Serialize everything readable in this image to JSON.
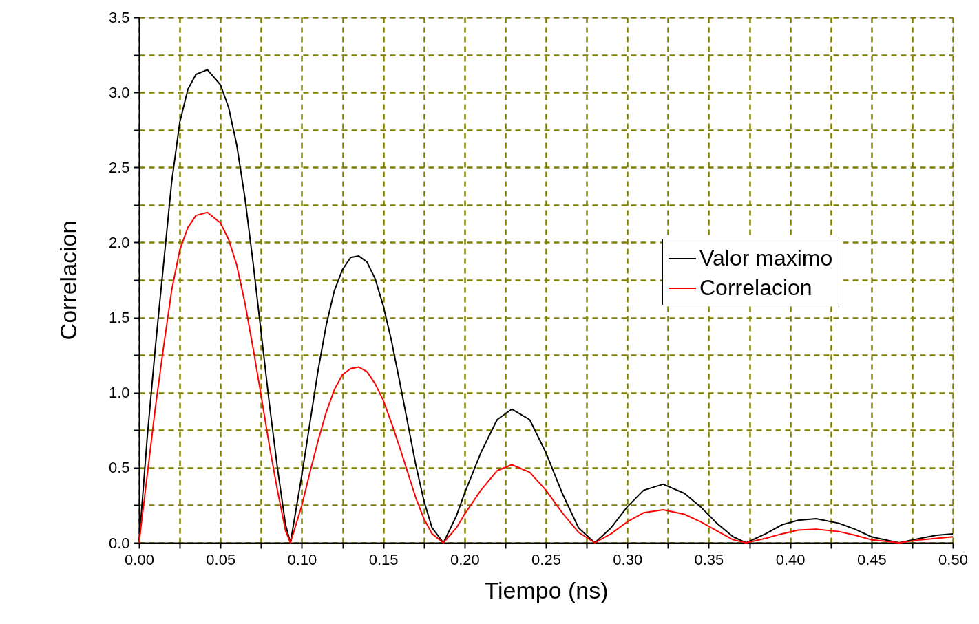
{
  "chart_data": {
    "type": "line",
    "xlabel": "Tiempo (ns)",
    "ylabel": "Correlacion",
    "x": [
      0,
      0.005,
      0.01,
      0.0125,
      0.015,
      0.02,
      0.025,
      0.03,
      0.035,
      0.042,
      0.05,
      0.055,
      0.06,
      0.065,
      0.07,
      0.075,
      0.08,
      0.085,
      0.09,
      0.093,
      0.1,
      0.105,
      0.11,
      0.115,
      0.12,
      0.125,
      0.13,
      0.135,
      0.14,
      0.145,
      0.15,
      0.155,
      0.16,
      0.165,
      0.17,
      0.175,
      0.18,
      0.187,
      0.195,
      0.2,
      0.21,
      0.22,
      0.229,
      0.24,
      0.25,
      0.26,
      0.27,
      0.28,
      0.29,
      0.3,
      0.31,
      0.322,
      0.335,
      0.345,
      0.355,
      0.365,
      0.373,
      0.385,
      0.395,
      0.405,
      0.416,
      0.43,
      0.44,
      0.45,
      0.467,
      0.48,
      0.49,
      0.5
    ],
    "series": [
      {
        "name": "Valor maximo",
        "color": "#000000",
        "values": [
          0,
          0.7,
          1.3,
          1.58,
          1.85,
          2.4,
          2.8,
          3.02,
          3.12,
          3.15,
          3.05,
          2.9,
          2.65,
          2.3,
          1.87,
          1.4,
          0.93,
          0.5,
          0.12,
          0,
          0.45,
          0.8,
          1.15,
          1.45,
          1.68,
          1.82,
          1.9,
          1.91,
          1.87,
          1.76,
          1.58,
          1.35,
          1.08,
          0.8,
          0.52,
          0.28,
          0.1,
          0,
          0.18,
          0.33,
          0.6,
          0.82,
          0.89,
          0.82,
          0.6,
          0.33,
          0.1,
          0,
          0.1,
          0.24,
          0.35,
          0.39,
          0.33,
          0.24,
          0.13,
          0.04,
          0,
          0.06,
          0.12,
          0.15,
          0.16,
          0.13,
          0.09,
          0.04,
          0,
          0.03,
          0.05,
          0.06
        ]
      },
      {
        "name": "Correlacion",
        "color": "#ff0000",
        "values": [
          0,
          0.45,
          0.9,
          1.1,
          1.3,
          1.68,
          1.95,
          2.1,
          2.18,
          2.2,
          2.13,
          2.02,
          1.85,
          1.6,
          1.3,
          0.98,
          0.65,
          0.35,
          0.08,
          0,
          0.25,
          0.47,
          0.68,
          0.87,
          1.02,
          1.12,
          1.16,
          1.17,
          1.14,
          1.06,
          0.95,
          0.8,
          0.64,
          0.47,
          0.3,
          0.16,
          0.06,
          0,
          0.1,
          0.19,
          0.35,
          0.48,
          0.52,
          0.47,
          0.35,
          0.2,
          0.07,
          0,
          0.06,
          0.14,
          0.2,
          0.22,
          0.19,
          0.14,
          0.08,
          0.02,
          0,
          0.03,
          0.06,
          0.085,
          0.09,
          0.075,
          0.05,
          0.02,
          0,
          0.02,
          0.03,
          0.04
        ]
      }
    ],
    "xlim": [
      0,
      0.5
    ],
    "xticks": [
      {
        "value": 0,
        "label": "0.00"
      },
      {
        "value": 0.025,
        "label": null
      },
      {
        "value": 0.05,
        "label": "0.05"
      },
      {
        "value": 0.075,
        "label": null
      },
      {
        "value": 0.1,
        "label": "0.10"
      },
      {
        "value": 0.125,
        "label": null
      },
      {
        "value": 0.15,
        "label": "0.15"
      },
      {
        "value": 0.175,
        "label": null
      },
      {
        "value": 0.2,
        "label": "0.20"
      },
      {
        "value": 0.225,
        "label": null
      },
      {
        "value": 0.25,
        "label": "0.25"
      },
      {
        "value": 0.275,
        "label": null
      },
      {
        "value": 0.3,
        "label": "0.30"
      },
      {
        "value": 0.325,
        "label": null
      },
      {
        "value": 0.35,
        "label": "0.35"
      },
      {
        "value": 0.375,
        "label": null
      },
      {
        "value": 0.4,
        "label": "0.40"
      },
      {
        "value": 0.425,
        "label": null
      },
      {
        "value": 0.45,
        "label": "0.45"
      },
      {
        "value": 0.475,
        "label": null
      },
      {
        "value": 0.5,
        "label": "0.50"
      }
    ],
    "ylim": [
      0,
      3.5
    ],
    "yticks": [
      {
        "value": 0,
        "label": "0.0"
      },
      {
        "value": 0.25,
        "label": null
      },
      {
        "value": 0.5,
        "label": "0.5"
      },
      {
        "value": 0.75,
        "label": null
      },
      {
        "value": 1,
        "label": "1.0"
      },
      {
        "value": 1.25,
        "label": null
      },
      {
        "value": 1.5,
        "label": "1.5"
      },
      {
        "value": 1.75,
        "label": null
      },
      {
        "value": 2,
        "label": "2.0"
      },
      {
        "value": 2.25,
        "label": null
      },
      {
        "value": 2.5,
        "label": "2.5"
      },
      {
        "value": 2.75,
        "label": null
      },
      {
        "value": 3,
        "label": "3.0"
      },
      {
        "value": 3.25,
        "label": null
      },
      {
        "value": 3.5,
        "label": "3.5"
      }
    ],
    "grid": true,
    "legend": "right",
    "line_style": "solid",
    "marker": "none"
  }
}
